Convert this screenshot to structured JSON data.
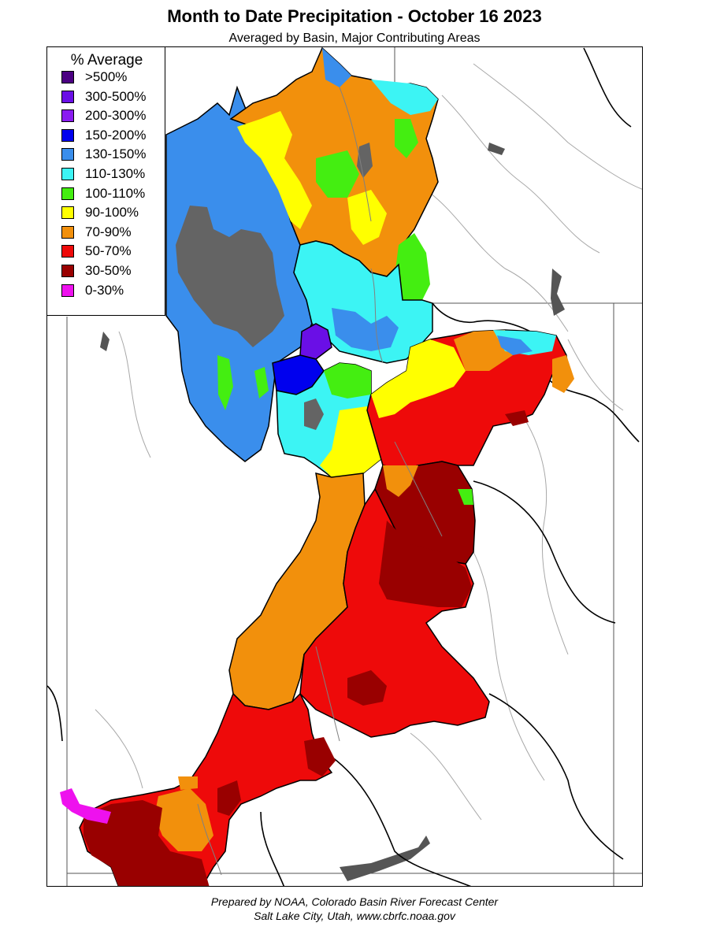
{
  "header": {
    "title": "Month to Date Precipitation - October 16 2023",
    "subtitle": "Averaged by Basin, Major Contributing Areas"
  },
  "legend": {
    "title": "% Average",
    "items": [
      {
        "label": ">500%",
        "color": "#4b0082"
      },
      {
        "label": "300-500%",
        "color": "#6a0fe6"
      },
      {
        "label": "200-300%",
        "color": "#8a1cf0"
      },
      {
        "label": "150-200%",
        "color": "#0000ee"
      },
      {
        "label": "130-150%",
        "color": "#3a8eec"
      },
      {
        "label": "110-130%",
        "color": "#3cf4f4"
      },
      {
        "label": "100-110%",
        "color": "#44ee11"
      },
      {
        "label": "90-100%",
        "color": "#ffff00"
      },
      {
        "label": "70-90%",
        "color": "#f2900c"
      },
      {
        "label": "50-70%",
        "color": "#ee0a0a"
      },
      {
        "label": "30-50%",
        "color": "#990000"
      },
      {
        "label": "0-30%",
        "color": "#ee11ee"
      }
    ]
  },
  "colors": {
    "no_data": "#646464",
    "state_border": "#555555",
    "basin_outline": "#000000",
    "river": "#9a9a9a"
  },
  "footer": {
    "line1": "Prepared by NOAA, Colorado Basin River Forecast Center",
    "line2": "Salt Lake City, Utah, www.cbrfc.noaa.gov"
  }
}
